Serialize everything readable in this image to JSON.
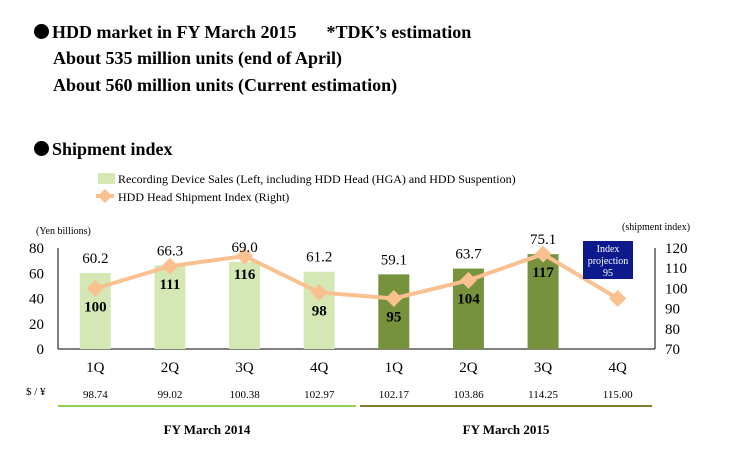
{
  "header": {
    "market_title": "HDD market in FY March 2015",
    "market_note": "*TDK’s estimation",
    "line1": "About 535 million units (end of April)",
    "line2": "About 560 million units (Current estimation)",
    "section_title": "Shipment index"
  },
  "chart_data": {
    "type": "bar+line",
    "categories": [
      "1Q",
      "2Q",
      "3Q",
      "4Q",
      "1Q",
      "2Q",
      "3Q",
      "4Q"
    ],
    "series": [
      {
        "name": "Recording Device Sales (Left, including HDD Head (HGA) and HDD Suspention)",
        "type": "bar",
        "axis": "left",
        "values": [
          60.2,
          66.3,
          69.0,
          61.2,
          59.1,
          63.7,
          75.1,
          null
        ],
        "colors": [
          "#d5e8b4",
          "#d5e8b4",
          "#d5e8b4",
          "#d5e8b4",
          "#76923c",
          "#76923c",
          "#76923c",
          null
        ]
      },
      {
        "name": "HDD Head Shipment Index (Right)",
        "type": "line",
        "axis": "right",
        "values": [
          100,
          111,
          116,
          98,
          95,
          104,
          117,
          95
        ],
        "color": "#fac090"
      }
    ],
    "ylabel_left": "(Yen billions)",
    "ylabel_right": "(shipment index)",
    "ylim_left": [
      0,
      80
    ],
    "yticks_left": [
      0,
      20,
      40,
      60,
      80
    ],
    "ylim_right": [
      70,
      120
    ],
    "yticks_right": [
      70,
      80,
      90,
      100,
      110,
      120
    ],
    "annotation": {
      "lines": [
        "Index",
        "projection",
        "95"
      ],
      "color": "#0d1a8c"
    },
    "fx": {
      "label": "$ / ¥",
      "values": [
        "98.74",
        "99.02",
        "100.38",
        "102.97",
        "102.17",
        "103.86",
        "114.25",
        "115.00"
      ]
    },
    "periods": [
      {
        "label": "FY March 2014",
        "color": "#92d050"
      },
      {
        "label": "FY March 2015",
        "color": "#7f7f2a"
      }
    ]
  }
}
